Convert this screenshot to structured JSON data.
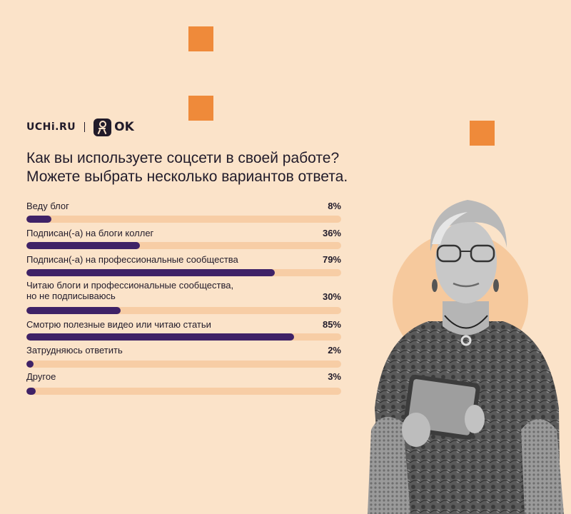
{
  "brand": {
    "uchi": "UCHi.RU",
    "separator": "|",
    "ok": "OK"
  },
  "colors": {
    "background": "#fbe3c9",
    "accent": "#ef8a3a",
    "bar_fill": "#3f2267",
    "bar_track": "#f7cda5"
  },
  "title_lines": [
    "Как вы используете соцсети в своей работе?",
    "Можете выбрать несколько вариантов ответа."
  ],
  "chart_data": {
    "type": "bar",
    "orientation": "horizontal",
    "title": "Как вы используете соцсети в своей работе? Можете выбрать несколько вариантов ответа.",
    "unit": "%",
    "xlim": [
      0,
      100
    ],
    "categories": [
      "Веду блог",
      "Подписан(-а) на блоги коллег",
      "Подписан(-а) на профессиональные сообщества",
      "Читаю блоги и профессиональные сообщества,\nно не подписываюсь",
      "Смотрю полезные видео или читаю статьи",
      "Затрудняюсь ответить",
      "Другое"
    ],
    "values": [
      8,
      36,
      79,
      30,
      85,
      2,
      3
    ],
    "value_labels": [
      "8%",
      "36%",
      "79%",
      "30%",
      "85%",
      "2%",
      "3%"
    ]
  }
}
